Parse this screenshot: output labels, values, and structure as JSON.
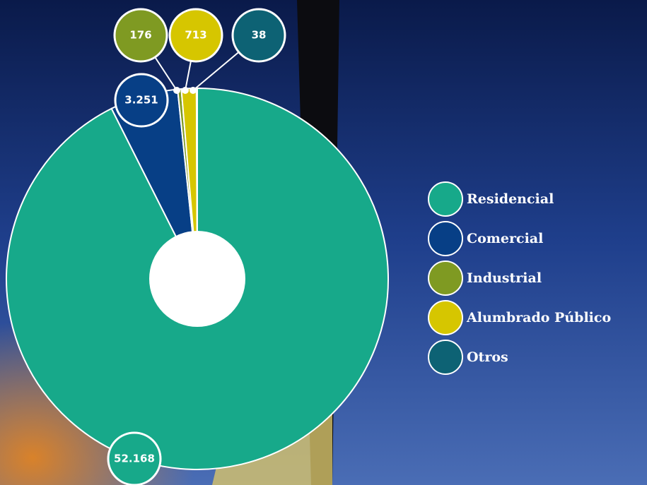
{
  "chart_data": {
    "type": "donut",
    "categories": [
      "Residencial",
      "Comercial",
      "Industrial",
      "Alumbrado Público",
      "Otros"
    ],
    "values": [
      52168,
      3251,
      176,
      713,
      38
    ],
    "value_labels": [
      "52.168",
      "3.251",
      "176",
      "713",
      "38"
    ],
    "colors": [
      "#17a98a",
      "#073f86",
      "#7f9a22",
      "#d6c600",
      "#0d6274"
    ],
    "legend": "right"
  }
}
